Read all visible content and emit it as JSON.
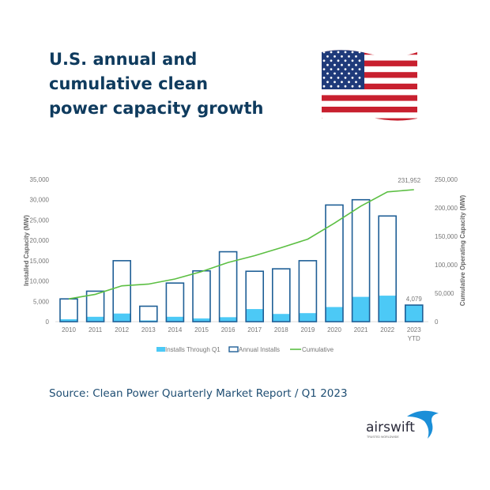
{
  "header": {
    "title_lines": [
      "U.S. annual and",
      "cumulative clean",
      "power capacity growth"
    ],
    "flag_icon": "us-flag-icon"
  },
  "source": "Source: Clean Power Quarterly Market Report / Q1 2023",
  "logo": {
    "name": "airswift",
    "tagline": "TRUSTED WORLDWIDE"
  },
  "chart_data": {
    "type": "bar",
    "categories": [
      "2010",
      "2011",
      "2012",
      "2013",
      "2014",
      "2015",
      "2016",
      "2017",
      "2018",
      "2019",
      "2020",
      "2021",
      "2022",
      "2023 YTD"
    ],
    "series": [
      {
        "name": "Installs Through Q1",
        "type": "bar",
        "axis": "left",
        "color": "#4cc9f6",
        "values": [
          600,
          1200,
          2000,
          300,
          1200,
          800,
          1100,
          3100,
          1900,
          2100,
          3600,
          6100,
          6400,
          4079
        ]
      },
      {
        "name": "Annual Installs",
        "type": "bar-outline",
        "axis": "left",
        "color": "#1f5f96",
        "values": [
          5600,
          7500,
          15000,
          3800,
          9500,
          12500,
          17200,
          12400,
          13000,
          15000,
          28700,
          30000,
          26000,
          4079
        ]
      },
      {
        "name": "Cumulative",
        "type": "line",
        "axis": "right",
        "color": "#5cbf43",
        "values": [
          40000,
          48000,
          63000,
          66000,
          75000,
          88000,
          104000,
          116000,
          130000,
          145000,
          173000,
          203000,
          228000,
          231952
        ]
      }
    ],
    "data_labels": {
      "cumulative_last": "231,952",
      "annual_last": "4,079"
    },
    "ylabel": "Installed Capacity (MW)",
    "y2label": "Cumulative Operating Capacity (MW)",
    "ylim": [
      0,
      35000
    ],
    "y2lim": [
      0,
      250000
    ],
    "yticks": [
      "0",
      "5,000",
      "10,000",
      "15,000",
      "20,000",
      "25,000",
      "30,000",
      "35,000"
    ],
    "y2ticks": [
      "0",
      "50,000",
      "100,000",
      "150,000",
      "200,000",
      "250,000"
    ],
    "grid": false,
    "legend_position": "bottom"
  }
}
